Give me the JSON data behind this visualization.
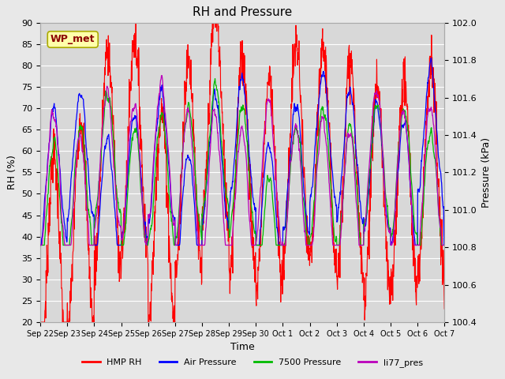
{
  "title": "RH and Pressure",
  "xlabel": "Time",
  "ylabel_left": "RH (%)",
  "ylabel_right": "Pressure (kPa)",
  "ylim_left": [
    20,
    90
  ],
  "ylim_right": [
    100.4,
    102.0
  ],
  "xtick_labels": [
    "Sep 22",
    "Sep 23",
    "Sep 24",
    "Sep 25",
    "Sep 26",
    "Sep 27",
    "Sep 28",
    "Sep 29",
    "Sep 30",
    "Oct 1",
    "Oct 2",
    "Oct 3",
    "Oct 4",
    "Oct 5",
    "Oct 6",
    "Oct 7"
  ],
  "yticks_left": [
    20,
    25,
    30,
    35,
    40,
    45,
    50,
    55,
    60,
    65,
    70,
    75,
    80,
    85,
    90
  ],
  "yticks_right": [
    100.4,
    100.6,
    100.8,
    101.0,
    101.2,
    101.4,
    101.6,
    101.8,
    102.0
  ],
  "annotation_text": "WP_met",
  "annotation_fg": "#8b0000",
  "annotation_bg": "#ffffaa",
  "annotation_edge": "#aaaa00",
  "colors": {
    "HMP_RH": "#ff0000",
    "Air_Pressure": "#0000ff",
    "7500_Pressure": "#00bb00",
    "li77_pres": "#bb00bb"
  },
  "legend_labels": [
    "HMP RH",
    "Air Pressure",
    "7500 Pressure",
    "li77_pres"
  ],
  "fig_bg_color": "#e8e8e8",
  "plot_bg_color": "#d8d8d8",
  "grid_color": "#ffffff",
  "title_fontsize": 11,
  "axis_fontsize": 9,
  "tick_fontsize": 8,
  "legend_fontsize": 8
}
